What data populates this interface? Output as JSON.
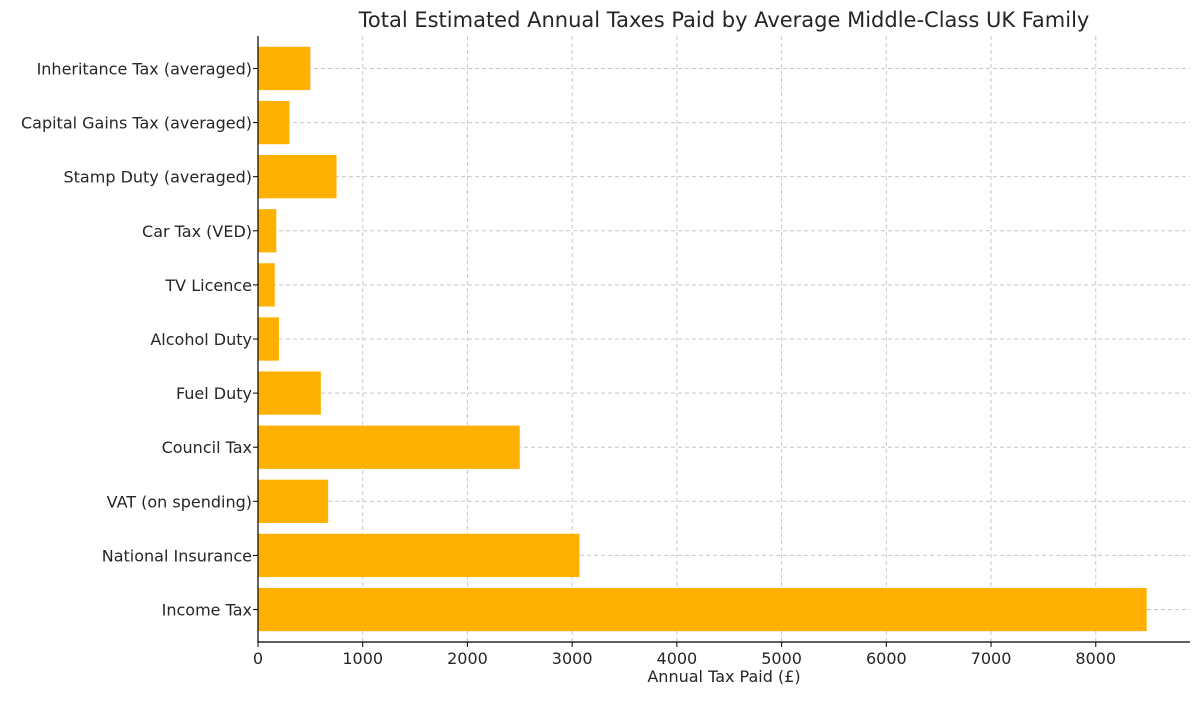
{
  "chart_data": {
    "type": "bar",
    "orientation": "horizontal",
    "title": "Total Estimated Annual Taxes Paid by Average Middle-Class UK Family",
    "xlabel": "Annual Tax Paid (£)",
    "ylabel": "",
    "categories": [
      "Income Tax",
      "National Insurance",
      "VAT (on spending)",
      "Council Tax",
      "Fuel Duty",
      "Alcohol Duty",
      "TV Licence",
      "Car Tax (VED)",
      "Stamp Duty (averaged)",
      "Capital Gains Tax (averaged)",
      "Inheritance Tax (averaged)"
    ],
    "values": [
      8486,
      3070,
      670,
      2500,
      600,
      200,
      160,
      175,
      750,
      300,
      500
    ],
    "xlim": [
      0,
      8900
    ],
    "xticks": [
      0,
      1000,
      2000,
      3000,
      4000,
      5000,
      6000,
      7000,
      8000
    ],
    "grid": true,
    "bar_color": "#FFB000"
  }
}
